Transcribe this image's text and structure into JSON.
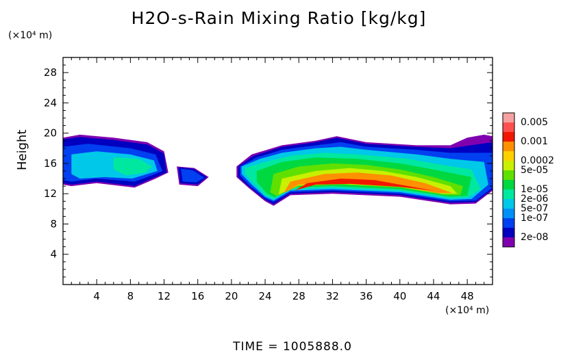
{
  "chart_data": {
    "type": "heatmap",
    "title": "H2O-s-Rain Mixing Ratio [kg/kg]",
    "ylabel": "Height",
    "xunit": "(×10⁴ m)",
    "yunit": "(×10⁴ m)",
    "footer": "TIME  =  1005888.0",
    "xlim": [
      0,
      51
    ],
    "ylim": [
      0,
      30
    ],
    "x_ticks": [
      4,
      8,
      12,
      16,
      20,
      24,
      28,
      32,
      36,
      40,
      44,
      48
    ],
    "y_ticks": [
      4,
      8,
      12,
      16,
      20,
      24,
      28
    ],
    "colorbar": {
      "labels": [
        "0.005",
        "0.001",
        "0.0002",
        "5e-05",
        "1e-05",
        "2e-06",
        "5e-07",
        "1e-07",
        "2e-08"
      ],
      "colors": [
        "#f7a0a0",
        "#ff5050",
        "#f01800",
        "#ff9000",
        "#ffd000",
        "#c8f000",
        "#60e000",
        "#00d840",
        "#00e8a0",
        "#00c8e8",
        "#0090f8",
        "#0040f0",
        "#0000c0",
        "#8000b0"
      ]
    },
    "regions": [
      {
        "name": "band-2e-08",
        "level": "2e-08",
        "color": "#8000b0",
        "polygons": [
          [
            [
              0,
              19.4
            ],
            [
              2,
              19.8
            ],
            [
              6,
              19.4
            ],
            [
              10,
              18.8
            ],
            [
              12,
              17.6
            ],
            [
              12.5,
              14.8
            ],
            [
              11,
              14.0
            ],
            [
              8.5,
              12.8
            ],
            [
              4,
              13.4
            ],
            [
              1,
              13.0
            ],
            [
              0,
              13.2
            ]
          ],
          [
            [
              13.5,
              15.6
            ],
            [
              15.6,
              15.4
            ],
            [
              17.3,
              14.2
            ],
            [
              16,
              13.0
            ],
            [
              13.8,
              13.2
            ]
          ],
          [
            [
              20.6,
              15.6
            ],
            [
              22.4,
              17.2
            ],
            [
              26,
              18.4
            ],
            [
              30,
              19.0
            ],
            [
              32.5,
              19.6
            ],
            [
              36,
              18.8
            ],
            [
              42,
              18.4
            ],
            [
              46,
              18.4
            ],
            [
              48,
              19.4
            ],
            [
              50,
              19.8
            ],
            [
              51,
              19.6
            ],
            [
              51,
              12.4
            ],
            [
              49,
              10.7
            ],
            [
              46,
              10.6
            ],
            [
              40,
              11.6
            ],
            [
              32,
              12.0
            ],
            [
              27,
              11.8
            ],
            [
              25,
              10.4
            ],
            [
              24,
              11.0
            ],
            [
              22,
              12.8
            ],
            [
              20.6,
              14.2
            ]
          ]
        ]
      },
      {
        "name": "band-1e-07",
        "level": "1e-07",
        "color": "#0000c0",
        "polygons": [
          [
            [
              0,
              19.2
            ],
            [
              2,
              19.5
            ],
            [
              6,
              19.1
            ],
            [
              10,
              18.5
            ],
            [
              12,
              17.3
            ],
            [
              12.3,
              14.8
            ],
            [
              11,
              14.2
            ],
            [
              8.5,
              13.0
            ],
            [
              4,
              13.6
            ],
            [
              1,
              13.2
            ],
            [
              0,
              13.4
            ]
          ],
          [
            [
              13.7,
              15.5
            ],
            [
              15.5,
              15.3
            ],
            [
              17.1,
              14.2
            ],
            [
              16,
              13.2
            ],
            [
              13.9,
              13.4
            ]
          ],
          [
            [
              20.8,
              15.6
            ],
            [
              22.6,
              17.0
            ],
            [
              26,
              18.2
            ],
            [
              30,
              18.8
            ],
            [
              32.5,
              19.4
            ],
            [
              36,
              18.6
            ],
            [
              42,
              18.2
            ],
            [
              46,
              18.0
            ],
            [
              51,
              18.8
            ],
            [
              51,
              12.6
            ],
            [
              49,
              10.9
            ],
            [
              46,
              10.8
            ],
            [
              40,
              11.8
            ],
            [
              32,
              12.2
            ],
            [
              27,
              12.0
            ],
            [
              25,
              10.6
            ],
            [
              24,
              11.2
            ],
            [
              22,
              13.0
            ],
            [
              20.8,
              14.2
            ]
          ]
        ]
      },
      {
        "name": "band-5e-07",
        "level": "5e-07",
        "color": "#0040f0",
        "polygons": [
          [
            [
              0,
              18.2
            ],
            [
              3,
              18.6
            ],
            [
              8,
              18.0
            ],
            [
              11,
              17.2
            ],
            [
              11.8,
              15.0
            ],
            [
              10.5,
              14.4
            ],
            [
              8.5,
              13.6
            ],
            [
              4,
              14.0
            ],
            [
              1,
              13.6
            ],
            [
              0,
              13.8
            ]
          ],
          [
            [
              14.0,
              15.3
            ],
            [
              15.4,
              15.1
            ],
            [
              16.8,
              14.1
            ],
            [
              15.8,
              13.5
            ],
            [
              14.2,
              13.6
            ]
          ],
          [
            [
              21.0,
              15.6
            ],
            [
              23,
              16.8
            ],
            [
              26,
              17.8
            ],
            [
              30,
              18.4
            ],
            [
              33,
              18.8
            ],
            [
              36,
              18.2
            ],
            [
              42,
              17.8
            ],
            [
              46,
              17.4
            ],
            [
              51,
              17.4
            ],
            [
              51,
              12.8
            ],
            [
              49,
              11.1
            ],
            [
              46,
              11.0
            ],
            [
              40,
              12.0
            ],
            [
              32,
              12.4
            ],
            [
              27,
              12.2
            ],
            [
              25,
              10.9
            ],
            [
              24,
              11.4
            ],
            [
              22.2,
              13.0
            ],
            [
              21.0,
              14.4
            ]
          ]
        ]
      },
      {
        "name": "band-2e-06",
        "level": "2e-06",
        "color": "#00c8e8",
        "polygons": [
          [
            [
              1,
              17.2
            ],
            [
              4,
              17.6
            ],
            [
              8,
              17.2
            ],
            [
              10.8,
              16.4
            ],
            [
              11.2,
              15.0
            ],
            [
              10,
              14.6
            ],
            [
              8.2,
              14.0
            ],
            [
              5,
              14.2
            ],
            [
              2,
              14.0
            ],
            [
              1,
              14.6
            ]
          ],
          [
            [
              21.2,
              15.6
            ],
            [
              23.4,
              16.6
            ],
            [
              26,
              17.4
            ],
            [
              30,
              18.0
            ],
            [
              33,
              18.2
            ],
            [
              36,
              17.8
            ],
            [
              42,
              17.2
            ],
            [
              46,
              16.6
            ],
            [
              50,
              16.2
            ],
            [
              50.5,
              13.2
            ],
            [
              48.5,
              11.3
            ],
            [
              46,
              11.2
            ],
            [
              40,
              12.2
            ],
            [
              32,
              12.6
            ],
            [
              27,
              12.4
            ],
            [
              25,
              11.1
            ],
            [
              24,
              11.6
            ],
            [
              22.4,
              13.2
            ],
            [
              21.2,
              14.6
            ]
          ]
        ]
      },
      {
        "name": "band-1e-05",
        "level": "1e-05",
        "color": "#00e8a0",
        "polygons": [
          [
            [
              6,
              16.8
            ],
            [
              9,
              16.6
            ],
            [
              10.6,
              15.6
            ],
            [
              9.8,
              14.8
            ],
            [
              7.5,
              14.4
            ],
            [
              6,
              15.2
            ]
          ],
          [
            [
              21.6,
              15.4
            ],
            [
              24,
              16.2
            ],
            [
              27,
              17.0
            ],
            [
              31,
              17.4
            ],
            [
              35,
              17.2
            ],
            [
              41,
              16.6
            ],
            [
              45,
              15.8
            ],
            [
              48.5,
              15.2
            ],
            [
              49.6,
              12.6
            ],
            [
              48,
              11.5
            ],
            [
              46,
              11.4
            ],
            [
              40,
              12.4
            ],
            [
              32,
              12.8
            ],
            [
              27,
              12.6
            ],
            [
              25,
              11.3
            ],
            [
              24,
              11.8
            ],
            [
              22.6,
              13.4
            ],
            [
              21.6,
              14.6
            ]
          ]
        ]
      },
      {
        "name": "band-5e-05",
        "level": "5e-05",
        "color": "#00d840",
        "polygons": [
          [
            [
              23,
              15.0
            ],
            [
              26,
              16.2
            ],
            [
              30,
              16.8
            ],
            [
              35,
              16.6
            ],
            [
              40,
              16.0
            ],
            [
              44,
              15.2
            ],
            [
              48.5,
              14.2
            ],
            [
              48,
              11.7
            ],
            [
              46,
              11.6
            ],
            [
              40,
              12.6
            ],
            [
              32,
              13.0
            ],
            [
              27,
              12.8
            ],
            [
              25.2,
              11.5
            ],
            [
              24.2,
              12.0
            ],
            [
              23,
              13.6
            ]
          ]
        ]
      },
      {
        "name": "band-0.0002",
        "level": "0.0002",
        "color": "#60e000",
        "polygons": [
          [
            [
              25,
              14.6
            ],
            [
              28,
              15.6
            ],
            [
              32,
              16.0
            ],
            [
              36,
              15.8
            ],
            [
              40,
              15.2
            ],
            [
              44,
              14.2
            ],
            [
              47.5,
              13.0
            ],
            [
              47.2,
              11.8
            ],
            [
              45.5,
              11.8
            ],
            [
              40,
              12.8
            ],
            [
              33,
              13.2
            ],
            [
              28,
              13.0
            ],
            [
              25.4,
              11.7
            ],
            [
              24.6,
              12.2
            ]
          ]
        ]
      },
      {
        "name": "band-0.001",
        "level": "0.001",
        "color": "#c8f000",
        "polygons": [
          [
            [
              26,
              14.0
            ],
            [
              30,
              15.0
            ],
            [
              34,
              15.4
            ],
            [
              38,
              15.0
            ],
            [
              42,
              14.2
            ],
            [
              46,
              13.0
            ],
            [
              46.8,
              12.0
            ],
            [
              45,
              12.0
            ],
            [
              40,
              12.9
            ],
            [
              33,
              13.3
            ],
            [
              28,
              13.1
            ],
            [
              25.6,
              11.9
            ]
          ]
        ]
      },
      {
        "name": "band-0.005",
        "level": "0.005",
        "color": "#ff9000",
        "polygons": [
          [
            [
              27,
              13.6
            ],
            [
              31,
              14.6
            ],
            [
              35,
              14.8
            ],
            [
              39,
              14.4
            ],
            [
              43,
              13.4
            ],
            [
              46.2,
              12.1
            ],
            [
              44.5,
              12.1
            ],
            [
              40,
              13.0
            ],
            [
              33,
              13.4
            ],
            [
              28,
              13.2
            ],
            [
              26.2,
              12.1
            ]
          ]
        ]
      },
      {
        "name": "band-peak",
        "level": "0.005",
        "color": "#f01800",
        "polygons": [
          [
            [
              29,
              13.4
            ],
            [
              33,
              14.0
            ],
            [
              37,
              13.8
            ],
            [
              41,
              13.0
            ],
            [
              44,
              12.4
            ],
            [
              40,
              12.9
            ],
            [
              34,
              13.3
            ],
            [
              30,
              13.2
            ],
            [
              27.5,
              12.4
            ]
          ]
        ]
      }
    ]
  }
}
